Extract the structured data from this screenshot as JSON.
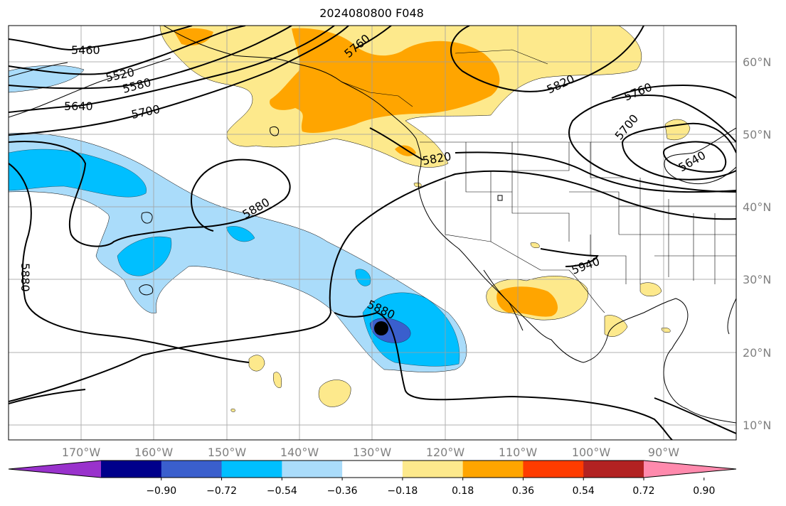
{
  "title": "2024080800 F048",
  "lon_ticks": [
    "170°W",
    "160°W",
    "150°W",
    "140°W",
    "130°W",
    "120°W",
    "110°W",
    "100°W",
    "90°W"
  ],
  "lat_ticks": [
    "60°N",
    "50°N",
    "40°N",
    "30°N",
    "20°N",
    "10°N"
  ],
  "contour_labels": [
    "5460",
    "5520",
    "5580",
    "5640",
    "5700",
    "5760",
    "5820",
    "5820",
    "5760",
    "5700",
    "5640",
    "5880",
    "5880",
    "5880",
    "5940"
  ],
  "colorbar": {
    "ticks": [
      "−0.90",
      "−0.72",
      "−0.54",
      "−0.36",
      "−0.18",
      "0.18",
      "0.36",
      "0.54",
      "0.72",
      "0.90"
    ],
    "colors": [
      "#9932cc",
      "#00008b",
      "#3a5fcd",
      "#00bfff",
      "#aadcfa",
      "#ffffff",
      "#fde98c",
      "#ffa500",
      "#ff3c00",
      "#b22222",
      "#ff8aad"
    ]
  },
  "colors": {
    "grid": "#a0a0a0",
    "contour": "#000000",
    "light_blue": "#aadcfa",
    "blue": "#00bfff",
    "dark_blue": "#3a5fcd",
    "yellow": "#fde98c",
    "orange": "#ffa500"
  },
  "marker": "storm-center-dot"
}
